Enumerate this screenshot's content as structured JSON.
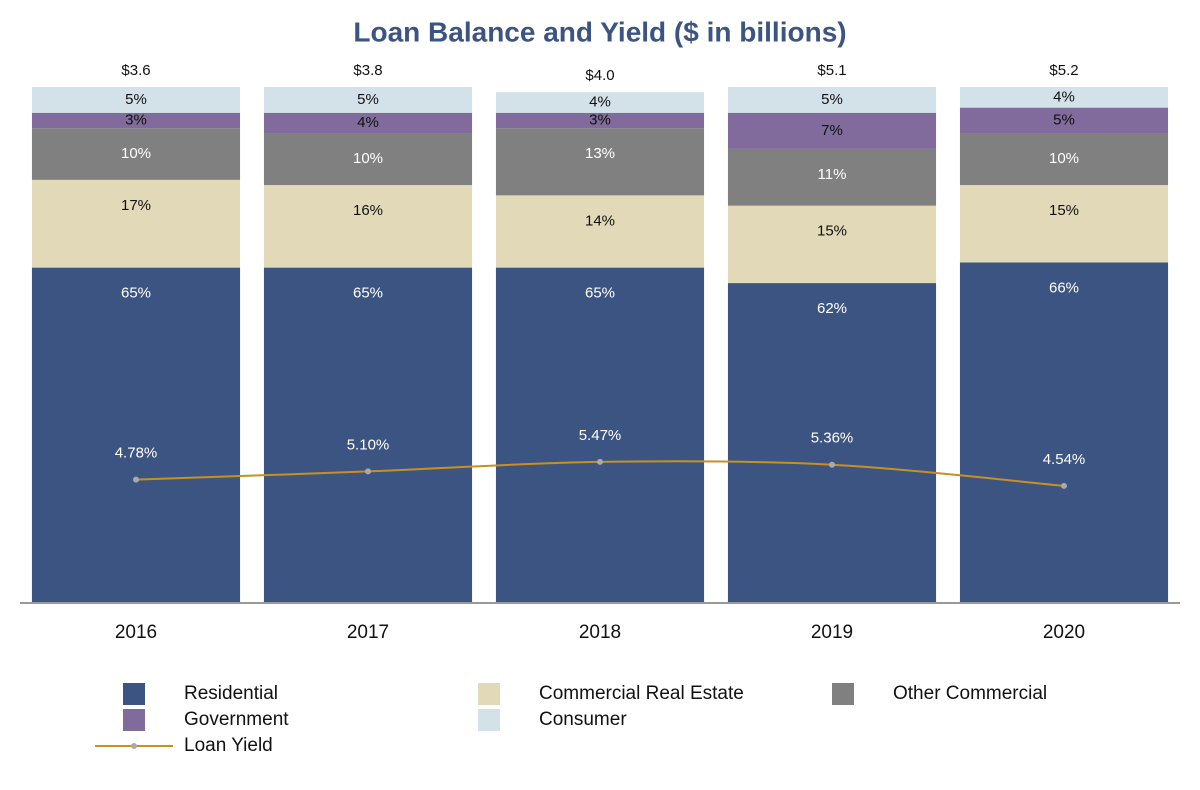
{
  "chart_data": {
    "type": "stacked_bar_line",
    "title": "Loan Balance and Yield ($ in billions)",
    "categories": [
      "2016",
      "2017",
      "2018",
      "2019",
      "2020"
    ],
    "ylim": [
      0,
      100
    ],
    "y2lim": [
      0,
      20
    ],
    "totals": {
      "values": [
        3.6,
        3.8,
        4.0,
        5.1,
        5.2
      ],
      "value_labels": [
        "$3.6",
        "$3.8",
        "$4.0",
        "$5.1",
        "$5.2"
      ]
    },
    "series": [
      {
        "name": "Residential",
        "color": "#3c5482",
        "label_color": "#ffffff",
        "values": [
          65,
          65,
          65,
          62,
          66
        ],
        "value_labels": [
          "65%",
          "65%",
          "65%",
          "62%",
          "66%"
        ]
      },
      {
        "name": "Commercial Real Estate",
        "color": "#e2d9b8",
        "label_color": "#111111",
        "values": [
          17,
          16,
          14,
          15,
          15
        ],
        "value_labels": [
          "17%",
          "16%",
          "14%",
          "15%",
          "15%"
        ]
      },
      {
        "name": "Other Commercial",
        "color": "#808080",
        "label_color": "#ffffff",
        "values": [
          10,
          10,
          13,
          11,
          10
        ],
        "value_labels": [
          "10%",
          "10%",
          "13%",
          "11%",
          "10%"
        ]
      },
      {
        "name": "Government",
        "color": "#806b9c",
        "label_color": "#111111",
        "values": [
          3,
          4,
          3,
          7,
          5
        ],
        "value_labels": [
          "3%",
          "4%",
          "3%",
          "7%",
          "5%"
        ]
      },
      {
        "name": "Consumer",
        "color": "#d3e1e8",
        "label_color": "#111111",
        "values": [
          5,
          5,
          4,
          5,
          4
        ],
        "value_labels": [
          "5%",
          "5%",
          "4%",
          "5%",
          "4%"
        ]
      },
      {
        "name": "Loan Yield",
        "type": "line",
        "axis": "y2",
        "color": "#c8901e",
        "label_color": "#ffffff",
        "values": [
          4.78,
          5.1,
          5.47,
          5.36,
          4.54
        ],
        "value_labels": [
          "4.78%",
          "5.10%",
          "5.47%",
          "5.36%",
          "4.54%"
        ]
      }
    ]
  }
}
